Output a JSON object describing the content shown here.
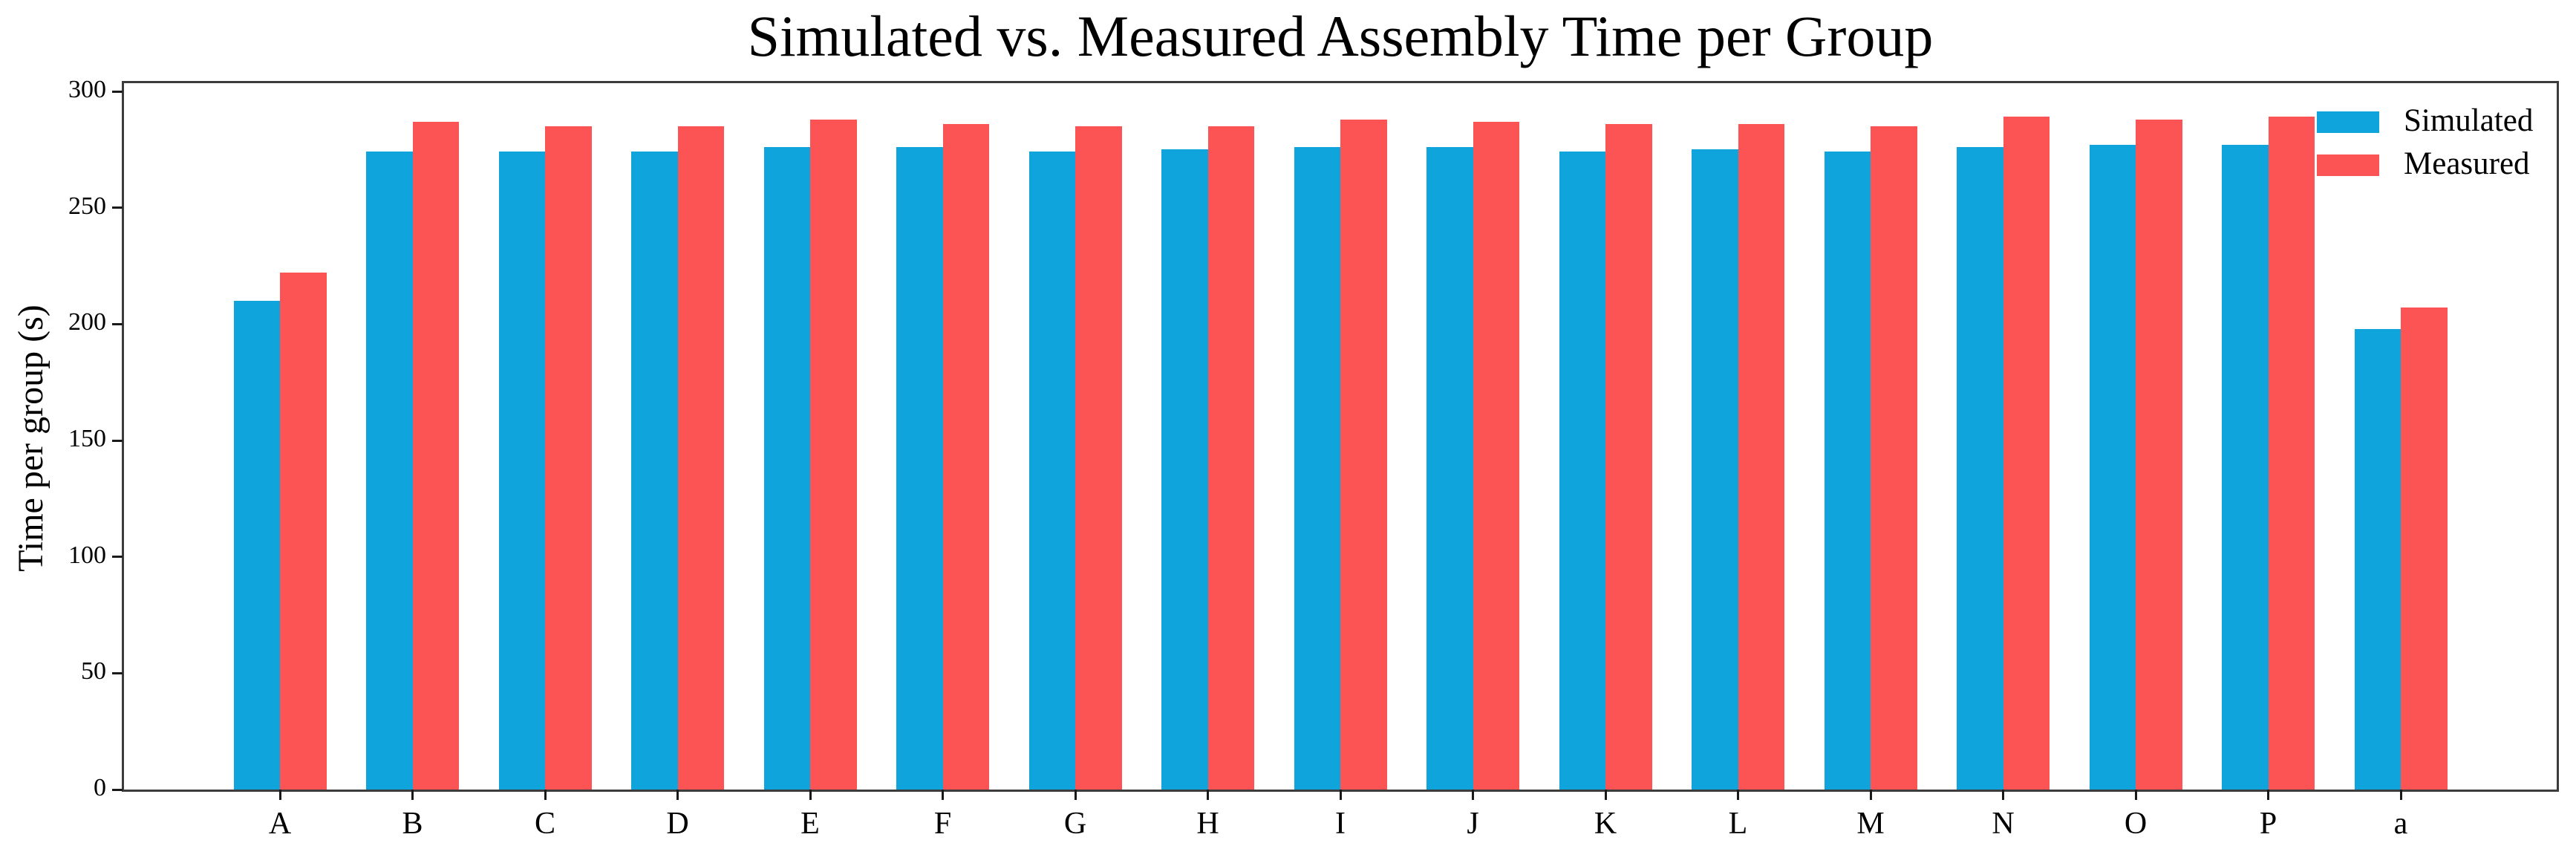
{
  "chart_data": {
    "type": "bar",
    "title": "Simulated vs. Measured Assembly Time per Group",
    "ylabel": "Time per group (s)",
    "xlabel": "",
    "categories": [
      "A",
      "B",
      "C",
      "D",
      "E",
      "F",
      "G",
      "H",
      "I",
      "J",
      "K",
      "L",
      "M",
      "N",
      "O",
      "P",
      "a"
    ],
    "series": [
      {
        "name": "Simulated",
        "color": "#0fa4dc",
        "values": [
          210,
          274,
          274,
          274,
          276,
          276,
          274,
          275,
          276,
          276,
          274,
          275,
          274,
          276,
          277,
          277,
          198
        ]
      },
      {
        "name": "Measured",
        "color": "#fc5454",
        "values": [
          222,
          287,
          285,
          285,
          288,
          286,
          285,
          285,
          288,
          287,
          286,
          286,
          285,
          289,
          288,
          289,
          207
        ]
      }
    ],
    "ylim": [
      0,
      300
    ],
    "yticks": [
      0,
      50,
      100,
      150,
      200,
      250,
      300
    ],
    "grid": false,
    "legend_position": "upper right"
  }
}
